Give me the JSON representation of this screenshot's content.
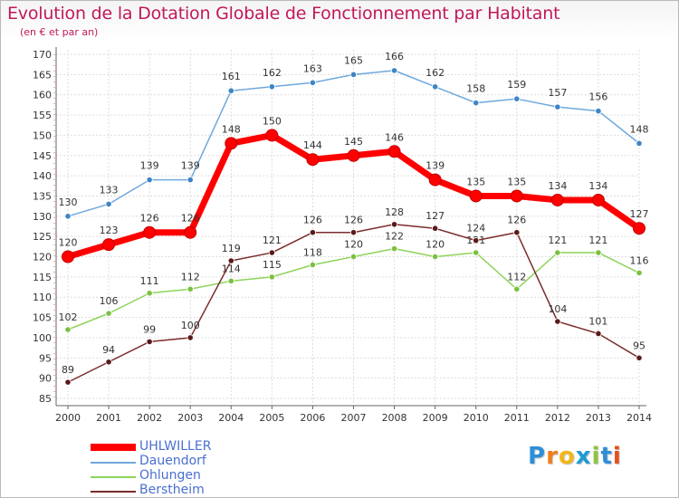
{
  "header": {
    "title": "Evolution de la Dotation Globale de Fonctionnement par Habitant",
    "subtitle": "(en € et par an)"
  },
  "logo": {
    "letters": [
      "P",
      "r",
      "o",
      "x",
      "i",
      "t",
      "i"
    ],
    "colors": [
      "#2e8fd8",
      "#ef7f1a",
      "#f2b618",
      "#1d9bd7",
      "#8dc63f",
      "#2e8fd8",
      "#e84e1b"
    ]
  },
  "chart_data": {
    "type": "line",
    "title": "Evolution de la Dotation Globale de Fonctionnement par Habitant",
    "subtitle": "(en € et par an)",
    "x": [
      "2000",
      "2001",
      "2002",
      "2003",
      "2004",
      "2005",
      "2006",
      "2007",
      "2008",
      "2009",
      "2010",
      "2011",
      "2012",
      "2013",
      "2014"
    ],
    "ylim": [
      85,
      170
    ],
    "yticks": [
      85,
      90,
      95,
      100,
      105,
      110,
      115,
      120,
      125,
      130,
      135,
      140,
      145,
      150,
      155,
      160,
      165,
      170
    ],
    "grid": true,
    "legend_position": "bottom-left",
    "series": [
      {
        "name": "UHLWILLER",
        "color": "#ff0000",
        "marker_color": "#e00000",
        "emphasis": true,
        "values": [
          120,
          123,
          126,
          126,
          148,
          150,
          144,
          145,
          146,
          139,
          135,
          135,
          134,
          134,
          127
        ]
      },
      {
        "name": "Dauendorf",
        "color": "#6fa8dc",
        "marker_color": "#3d85c6",
        "values": [
          130,
          133,
          139,
          139,
          161,
          162,
          163,
          165,
          166,
          162,
          158,
          159,
          157,
          156,
          148
        ]
      },
      {
        "name": "Ohlungen",
        "color": "#8fd45a",
        "marker_color": "#7ac142",
        "values": [
          102,
          106,
          111,
          112,
          114,
          115,
          118,
          120,
          122,
          120,
          121,
          112,
          121,
          121,
          116
        ]
      },
      {
        "name": "Berstheim",
        "color": "#7b2c2c",
        "marker_color": "#5a1a1a",
        "values": [
          89,
          94,
          99,
          100,
          119,
          121,
          126,
          126,
          128,
          127,
          124,
          126,
          104,
          101,
          95
        ]
      }
    ]
  }
}
